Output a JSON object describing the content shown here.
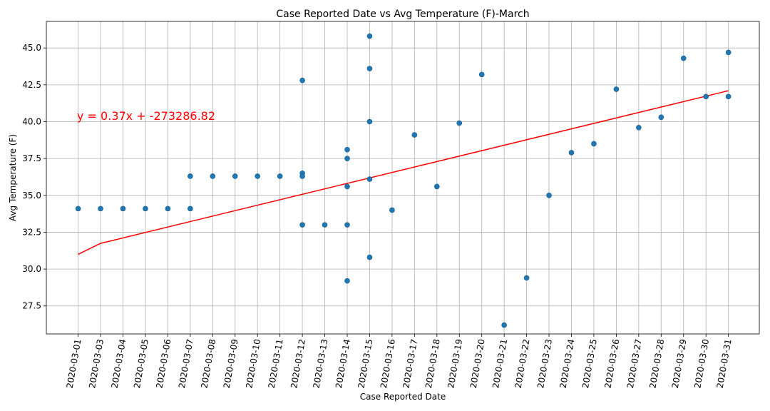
{
  "chart_data": {
    "type": "scatter",
    "title": "Case Reported Date vs Avg Temperature (F)-March",
    "xlabel": "Case Reported Date",
    "ylabel": "Avg Temperature (F)",
    "categories": [
      "2020-03-01",
      "2020-03-03",
      "2020-03-04",
      "2020-03-05",
      "2020-03-06",
      "2020-03-07",
      "2020-03-08",
      "2020-03-09",
      "2020-03-10",
      "2020-03-11",
      "2020-03-12",
      "2020-03-13",
      "2020-03-14",
      "2020-03-15",
      "2020-03-16",
      "2020-03-17",
      "2020-03-18",
      "2020-03-19",
      "2020-03-20",
      "2020-03-21",
      "2020-03-22",
      "2020-03-23",
      "2020-03-24",
      "2020-03-25",
      "2020-03-26",
      "2020-03-27",
      "2020-03-28",
      "2020-03-29",
      "2020-03-30",
      "2020-03-31"
    ],
    "ylim": [
      25.6,
      46.8
    ],
    "yticks": [
      27.5,
      30.0,
      32.5,
      35.0,
      37.5,
      40.0,
      42.5,
      45.0
    ],
    "grid": true,
    "point_color": "#1f77b4",
    "points": [
      {
        "x": "2020-03-01",
        "y": 34.1
      },
      {
        "x": "2020-03-03",
        "y": 34.1
      },
      {
        "x": "2020-03-04",
        "y": 34.1
      },
      {
        "x": "2020-03-05",
        "y": 34.1
      },
      {
        "x": "2020-03-06",
        "y": 34.1
      },
      {
        "x": "2020-03-07",
        "y": 34.1
      },
      {
        "x": "2020-03-07",
        "y": 36.3
      },
      {
        "x": "2020-03-08",
        "y": 36.3
      },
      {
        "x": "2020-03-09",
        "y": 36.3
      },
      {
        "x": "2020-03-10",
        "y": 36.3
      },
      {
        "x": "2020-03-11",
        "y": 36.3
      },
      {
        "x": "2020-03-12",
        "y": 42.8
      },
      {
        "x": "2020-03-12",
        "y": 36.5
      },
      {
        "x": "2020-03-12",
        "y": 36.3
      },
      {
        "x": "2020-03-12",
        "y": 33.0
      },
      {
        "x": "2020-03-13",
        "y": 33.0
      },
      {
        "x": "2020-03-14",
        "y": 38.1
      },
      {
        "x": "2020-03-14",
        "y": 37.5
      },
      {
        "x": "2020-03-14",
        "y": 35.6
      },
      {
        "x": "2020-03-14",
        "y": 33.0
      },
      {
        "x": "2020-03-14",
        "y": 29.2
      },
      {
        "x": "2020-03-15",
        "y": 45.8
      },
      {
        "x": "2020-03-15",
        "y": 43.6
      },
      {
        "x": "2020-03-15",
        "y": 40.0
      },
      {
        "x": "2020-03-15",
        "y": 36.1
      },
      {
        "x": "2020-03-15",
        "y": 30.8
      },
      {
        "x": "2020-03-16",
        "y": 34.0
      },
      {
        "x": "2020-03-17",
        "y": 39.1
      },
      {
        "x": "2020-03-18",
        "y": 35.6
      },
      {
        "x": "2020-03-19",
        "y": 39.9
      },
      {
        "x": "2020-03-20",
        "y": 43.2
      },
      {
        "x": "2020-03-21",
        "y": 26.2
      },
      {
        "x": "2020-03-22",
        "y": 29.4
      },
      {
        "x": "2020-03-23",
        "y": 35.0
      },
      {
        "x": "2020-03-24",
        "y": 37.9
      },
      {
        "x": "2020-03-25",
        "y": 38.5
      },
      {
        "x": "2020-03-26",
        "y": 42.2
      },
      {
        "x": "2020-03-27",
        "y": 39.6
      },
      {
        "x": "2020-03-28",
        "y": 40.3
      },
      {
        "x": "2020-03-29",
        "y": 44.3
      },
      {
        "x": "2020-03-30",
        "y": 41.7
      },
      {
        "x": "2020-03-31",
        "y": 44.7
      },
      {
        "x": "2020-03-31",
        "y": 41.7
      }
    ],
    "trendline": {
      "color": "#ff0000",
      "equation": "y = 0.37x + -273286.82",
      "points": [
        {
          "x": "2020-03-01",
          "y": 31.0
        },
        {
          "x": "2020-03-03",
          "y": 31.74
        },
        {
          "x": "2020-03-31",
          "y": 42.1
        }
      ]
    }
  }
}
